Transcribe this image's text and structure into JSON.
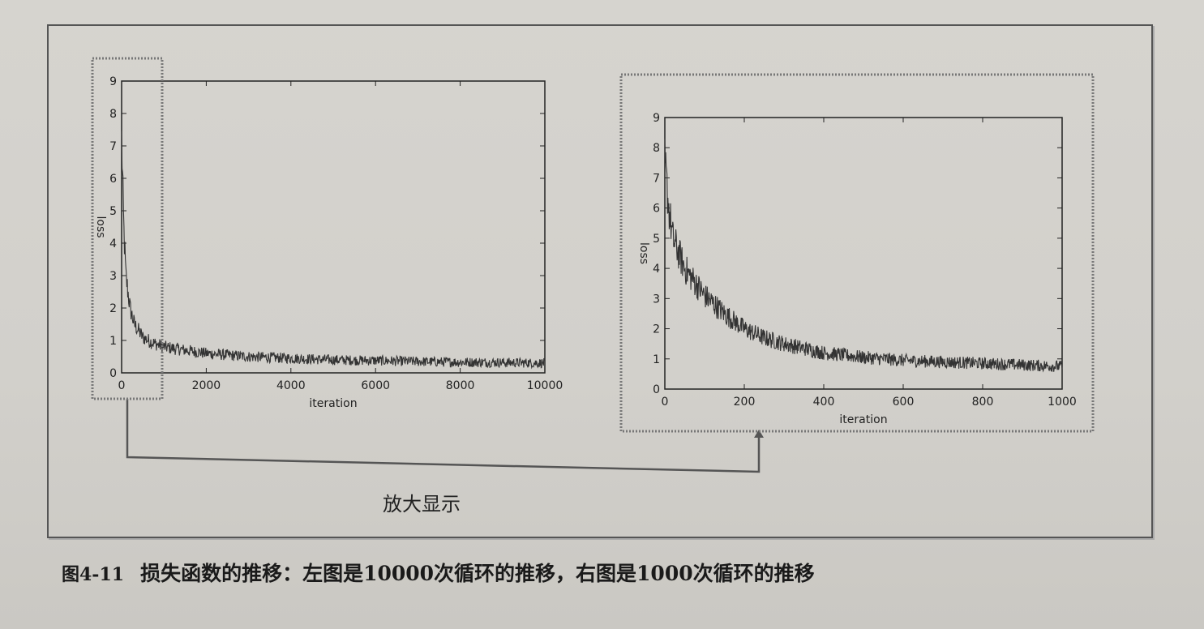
{
  "zoom_caption": "放大显示",
  "figure_caption": {
    "number": "图4-11",
    "text": "损失函数的推移：左图是10000次循环的推移，右图是1000次循环的推移"
  },
  "colors": {
    "line": "#333333",
    "highlight_border": "#777777"
  },
  "chart_data": [
    {
      "type": "line",
      "title": "",
      "xlabel": "iteration",
      "ylabel": "loss",
      "xlim": [
        0,
        10000
      ],
      "ylim": [
        0,
        9
      ],
      "xticks": [
        0,
        2000,
        4000,
        6000,
        8000,
        10000
      ],
      "yticks": [
        0,
        1,
        2,
        3,
        4,
        5,
        6,
        7,
        8,
        9
      ],
      "grid": false,
      "series": [
        {
          "x": [
            0,
            50,
            100,
            200,
            300,
            500,
            700,
            1000,
            1500,
            2000,
            3000,
            4000,
            5000,
            6000,
            7000,
            8000,
            9000,
            10000
          ],
          "y": [
            7.2,
            4.5,
            3.0,
            2.0,
            1.5,
            1.1,
            0.95,
            0.8,
            0.7,
            0.6,
            0.5,
            0.45,
            0.4,
            0.38,
            0.35,
            0.33,
            0.32,
            0.3
          ]
        }
      ]
    },
    {
      "type": "line",
      "title": "",
      "xlabel": "iteration",
      "ylabel": "loss",
      "xlim": [
        0,
        1000
      ],
      "ylim": [
        0,
        9
      ],
      "xticks": [
        0,
        200,
        400,
        600,
        800,
        1000
      ],
      "yticks": [
        0,
        1,
        2,
        3,
        4,
        5,
        6,
        7,
        8,
        9
      ],
      "grid": false,
      "series": [
        {
          "x": [
            0,
            10,
            20,
            50,
            100,
            150,
            200,
            250,
            300,
            400,
            500,
            600,
            700,
            800,
            900,
            1000
          ],
          "y": [
            7.5,
            6.0,
            5.0,
            4.0,
            3.1,
            2.5,
            2.0,
            1.7,
            1.5,
            1.2,
            1.05,
            0.95,
            0.9,
            0.85,
            0.8,
            0.75
          ]
        }
      ]
    }
  ]
}
